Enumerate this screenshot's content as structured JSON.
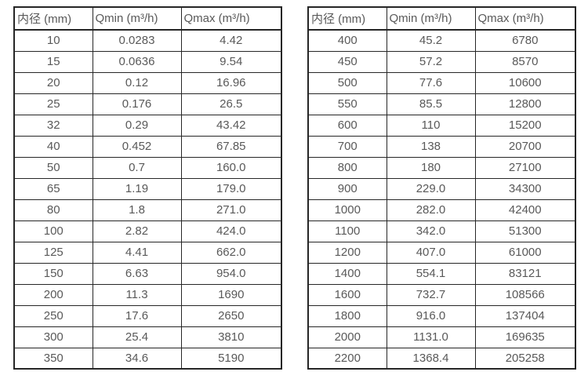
{
  "page": {
    "background": "#ffffff",
    "text_color": "#595959",
    "border_color": "#262626"
  },
  "chart_data": [
    {
      "type": "table",
      "name": "flow-table-small-diameters",
      "headers": [
        "内径 (mm)",
        "Qmin (m³/h)",
        "Qmax (m³/h)"
      ],
      "rows": [
        [
          "10",
          "0.0283",
          "4.42"
        ],
        [
          "15",
          "0.0636",
          "9.54"
        ],
        [
          "20",
          "0.12",
          "16.96"
        ],
        [
          "25",
          "0.176",
          "26.5"
        ],
        [
          "32",
          "0.29",
          "43.42"
        ],
        [
          "40",
          "0.452",
          "67.85"
        ],
        [
          "50",
          "0.7",
          "160.0"
        ],
        [
          "65",
          "1.19",
          "179.0"
        ],
        [
          "80",
          "1.8",
          "271.0"
        ],
        [
          "100",
          "2.82",
          "424.0"
        ],
        [
          "125",
          "4.41",
          "662.0"
        ],
        [
          "150",
          "6.63",
          "954.0"
        ],
        [
          "200",
          "11.3",
          "1690"
        ],
        [
          "250",
          "17.6",
          "2650"
        ],
        [
          "300",
          "25.4",
          "3810"
        ],
        [
          "350",
          "34.6",
          "5190"
        ]
      ]
    },
    {
      "type": "table",
      "name": "flow-table-large-diameters",
      "headers": [
        "内径 (mm)",
        "Qmin (m³/h)",
        "Qmax (m³/h)"
      ],
      "rows": [
        [
          "400",
          "45.2",
          "6780"
        ],
        [
          "450",
          "57.2",
          "8570"
        ],
        [
          "500",
          "77.6",
          "10600"
        ],
        [
          "550",
          "85.5",
          "12800"
        ],
        [
          "600",
          "110",
          "15200"
        ],
        [
          "700",
          "138",
          "20700"
        ],
        [
          "800",
          "180",
          "27100"
        ],
        [
          "900",
          "229.0",
          "34300"
        ],
        [
          "1000",
          "282.0",
          "42400"
        ],
        [
          "1100",
          "342.0",
          "51300"
        ],
        [
          "1200",
          "407.0",
          "61000"
        ],
        [
          "1400",
          "554.1",
          "83121"
        ],
        [
          "1600",
          "732.7",
          "108566"
        ],
        [
          "1800",
          "916.0",
          "137404"
        ],
        [
          "2000",
          "1131.0",
          "169635"
        ],
        [
          "2200",
          "1368.4",
          "205258"
        ]
      ]
    }
  ]
}
